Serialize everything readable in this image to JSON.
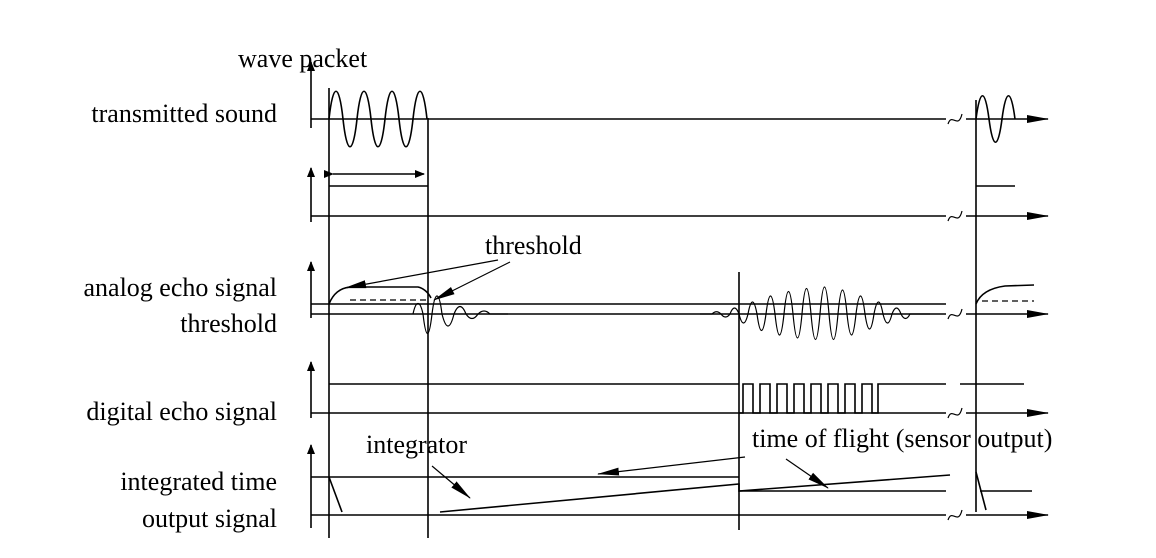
{
  "labels": {
    "wave_packet": "wave packet",
    "transmitted_sound": "transmitted sound",
    "analog_echo_signal": "analog echo signal",
    "threshold_row": "threshold",
    "threshold_annotation": "threshold",
    "digital_echo_signal": "digital echo signal",
    "integrator": "integrator",
    "time_of_flight": "time of flight (sensor output)",
    "integrated_time": "integrated time",
    "output_signal": "output signal"
  }
}
